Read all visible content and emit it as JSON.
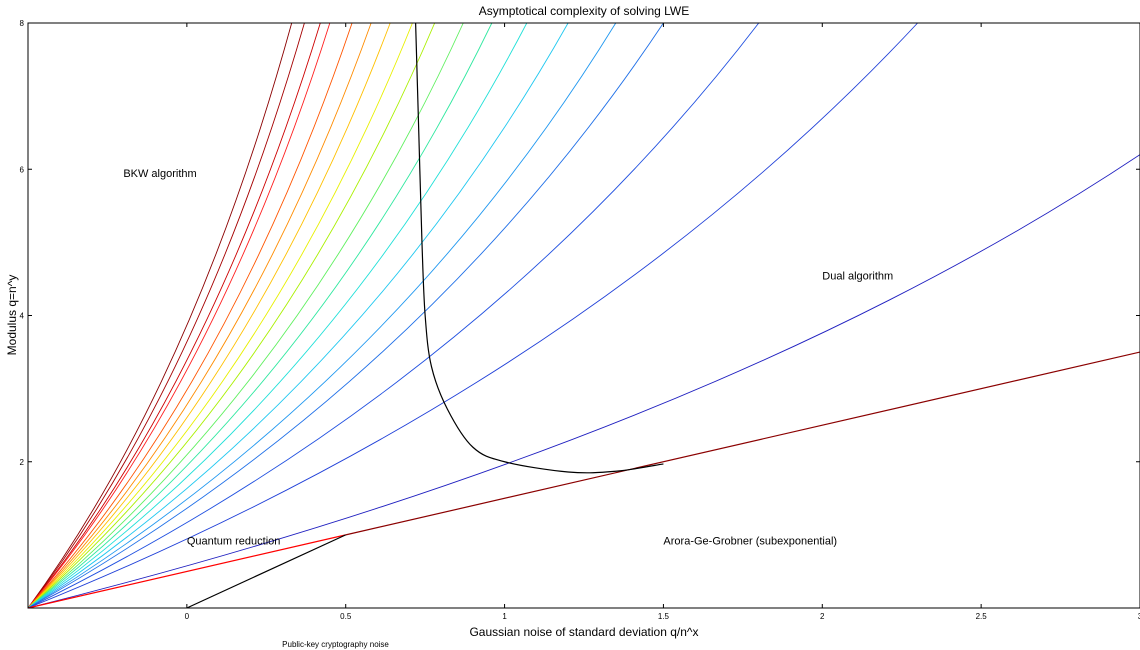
{
  "chart_data": {
    "type": "line",
    "title": "Asymptotical complexity of solving LWE",
    "xlabel": "Gaussian noise of standard deviation q/n^x",
    "ylabel": "Modulus q=n^y",
    "xlim": [
      -0.5,
      3
    ],
    "ylim": [
      0,
      8
    ],
    "x_ticks": [
      "0",
      "0.5",
      "1",
      "1.5",
      "2",
      "2.5",
      "3"
    ],
    "x_tick_values": [
      0,
      0.5,
      1,
      1.5,
      2,
      2.5,
      3
    ],
    "y_ticks": [
      "2",
      "4",
      "6",
      "8"
    ],
    "y_tick_values": [
      2,
      4,
      6,
      8
    ],
    "grid": false,
    "annotations": [
      {
        "text": "BKW algorithm",
        "x": -0.2,
        "y": 5.95,
        "color": "#000000"
      },
      {
        "text": "Dual algorithm",
        "x": 2.0,
        "y": 4.55,
        "color": "#000000"
      },
      {
        "text": "Arora-Ge-Grobner (subexponential)",
        "x": 1.5,
        "y": 0.92,
        "color": "#000000"
      },
      {
        "text": "Quantum reduction",
        "x": 0.0,
        "y": 0.92,
        "color": "#ff0000"
      },
      {
        "text": "Public-key cryptography noise",
        "x": 0.3,
        "y": -0.48,
        "color": "#000000"
      }
    ],
    "boundary_series": [
      {
        "color": "#8b0000",
        "points": [
          [
            0.5,
            1.0
          ],
          [
            3.0,
            3.5
          ]
        ]
      },
      {
        "color": "#ff0000",
        "points": [
          [
            -0.5,
            0.0
          ],
          [
            0.5,
            1.0
          ]
        ]
      },
      {
        "color": "#000000",
        "points": [
          [
            0.0,
            0.0
          ],
          [
            0.5,
            1.0
          ]
        ]
      },
      {
        "color": "#000000",
        "points": [
          [
            0.72,
            8.0
          ],
          [
            0.73,
            6.5
          ],
          [
            0.74,
            5.0
          ],
          [
            0.75,
            4.0
          ],
          [
            0.77,
            3.3
          ],
          [
            0.82,
            2.72
          ],
          [
            0.9,
            2.2
          ],
          [
            1.0,
            2.0
          ],
          [
            1.2,
            1.86
          ],
          [
            1.35,
            1.87
          ],
          [
            1.5,
            1.97
          ]
        ]
      }
    ],
    "series": [
      {
        "color": "#8b0000",
        "points": [
          [
            -0.5,
            0.0
          ],
          [
            0.33,
            8.0
          ]
        ]
      },
      {
        "color": "#a50000",
        "points": [
          [
            -0.5,
            0.0
          ],
          [
            0.37,
            8.0
          ]
        ]
      },
      {
        "color": "#cc0000",
        "points": [
          [
            -0.5,
            0.0
          ],
          [
            0.42,
            8.0
          ]
        ]
      },
      {
        "color": "#ff2020",
        "points": [
          [
            -0.5,
            0.0
          ],
          [
            0.45,
            8.0
          ]
        ]
      },
      {
        "color": "#ff5500",
        "points": [
          [
            -0.5,
            0.0
          ],
          [
            0.52,
            8.0
          ]
        ]
      },
      {
        "color": "#ff8c00",
        "points": [
          [
            -0.5,
            0.0
          ],
          [
            0.58,
            8.0
          ]
        ]
      },
      {
        "color": "#ffc000",
        "points": [
          [
            -0.5,
            0.0
          ],
          [
            0.64,
            8.0
          ]
        ]
      },
      {
        "color": "#e8f000",
        "points": [
          [
            -0.5,
            0.0
          ],
          [
            0.71,
            8.0
          ]
        ]
      },
      {
        "color": "#aaf000",
        "points": [
          [
            -0.5,
            0.0
          ],
          [
            0.78,
            8.0
          ]
        ]
      },
      {
        "color": "#60f060",
        "points": [
          [
            -0.5,
            0.0
          ],
          [
            0.87,
            8.0
          ]
        ]
      },
      {
        "color": "#30e8a0",
        "points": [
          [
            -0.5,
            0.0
          ],
          [
            0.96,
            8.0
          ]
        ]
      },
      {
        "color": "#20e0d8",
        "points": [
          [
            -0.5,
            0.0
          ],
          [
            1.07,
            8.0
          ]
        ]
      },
      {
        "color": "#20c8f0",
        "points": [
          [
            -0.5,
            0.0
          ],
          [
            1.2,
            8.0
          ]
        ]
      },
      {
        "color": "#2098f0",
        "points": [
          [
            -0.5,
            0.0
          ],
          [
            1.35,
            8.0
          ]
        ]
      },
      {
        "color": "#2070e8",
        "points": [
          [
            -0.5,
            0.0
          ],
          [
            1.5,
            8.0
          ]
        ]
      },
      {
        "color": "#2050e0",
        "points": [
          [
            -0.5,
            0.0
          ],
          [
            1.8,
            8.0
          ]
        ]
      },
      {
        "color": "#2040d8",
        "points": [
          [
            -0.5,
            0.0
          ],
          [
            2.3,
            8.0
          ]
        ]
      },
      {
        "color": "#2020c0",
        "points": [
          [
            -0.5,
            0.0
          ],
          [
            3.0,
            6.2
          ]
        ]
      }
    ]
  }
}
